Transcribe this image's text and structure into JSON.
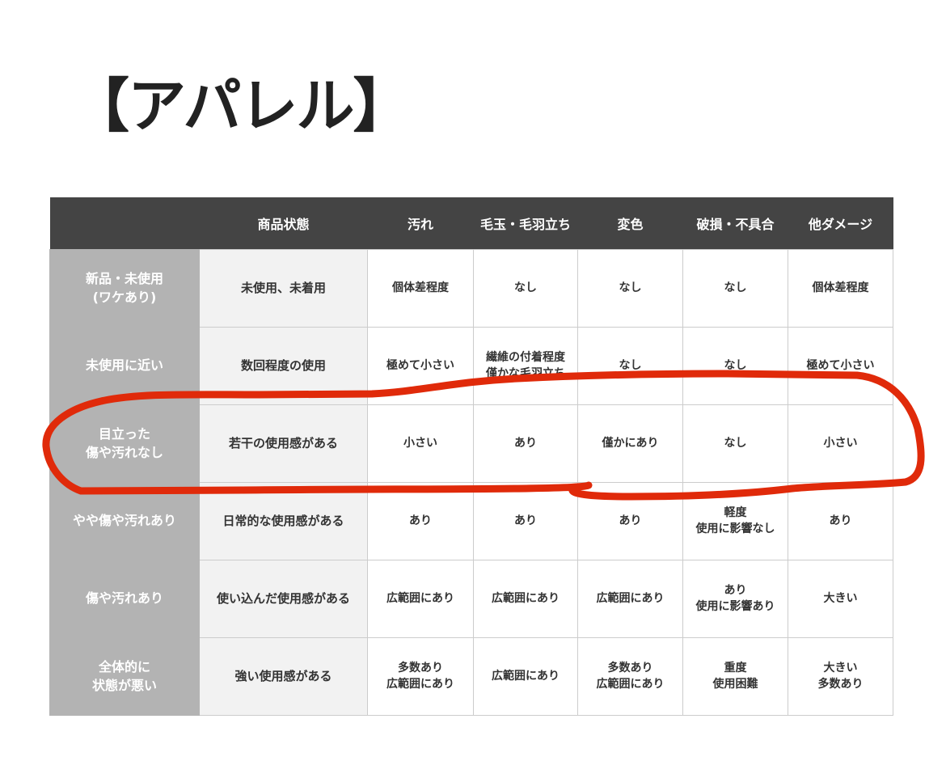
{
  "title": "【アパレル】",
  "table": {
    "headers": [
      "",
      "商品状態",
      "汚れ",
      "毛玉・毛羽立ち",
      "変色",
      "破損・不具合",
      "他ダメージ"
    ],
    "rows": [
      [
        "新品・未使用\n(ワケあり)",
        "未使用、未着用",
        "個体差程度",
        "なし",
        "なし",
        "なし",
        "個体差程度"
      ],
      [
        "未使用に近い",
        "数回程度の使用",
        "極めて小さい",
        "繊維の付着程度\n僅かな毛羽立ち",
        "なし",
        "なし",
        "極めて小さい"
      ],
      [
        "目立った\n傷や汚れなし",
        "若干の使用感がある",
        "小さい",
        "あり",
        "僅かにあり",
        "なし",
        "小さい"
      ],
      [
        "やや傷や汚れあり",
        "日常的な使用感がある",
        "あり",
        "あり",
        "あり",
        "軽度\n使用に影響なし",
        "あり"
      ],
      [
        "傷や汚れあり",
        "使い込んだ使用感がある",
        "広範囲にあり",
        "広範囲にあり",
        "広範囲にあり",
        "あり\n使用に影響あり",
        "大きい"
      ],
      [
        "全体的に\n状態が悪い",
        "強い使用感がある",
        "多数あり\n広範囲にあり",
        "広範囲にあり",
        "多数あり\n広範囲にあり",
        "重度\n使用困難",
        "大きい\n多数あり"
      ]
    ]
  },
  "annotation": {
    "color": "#e02a0a",
    "highlighted_row": "目立った\n傷や汚れなし"
  }
}
